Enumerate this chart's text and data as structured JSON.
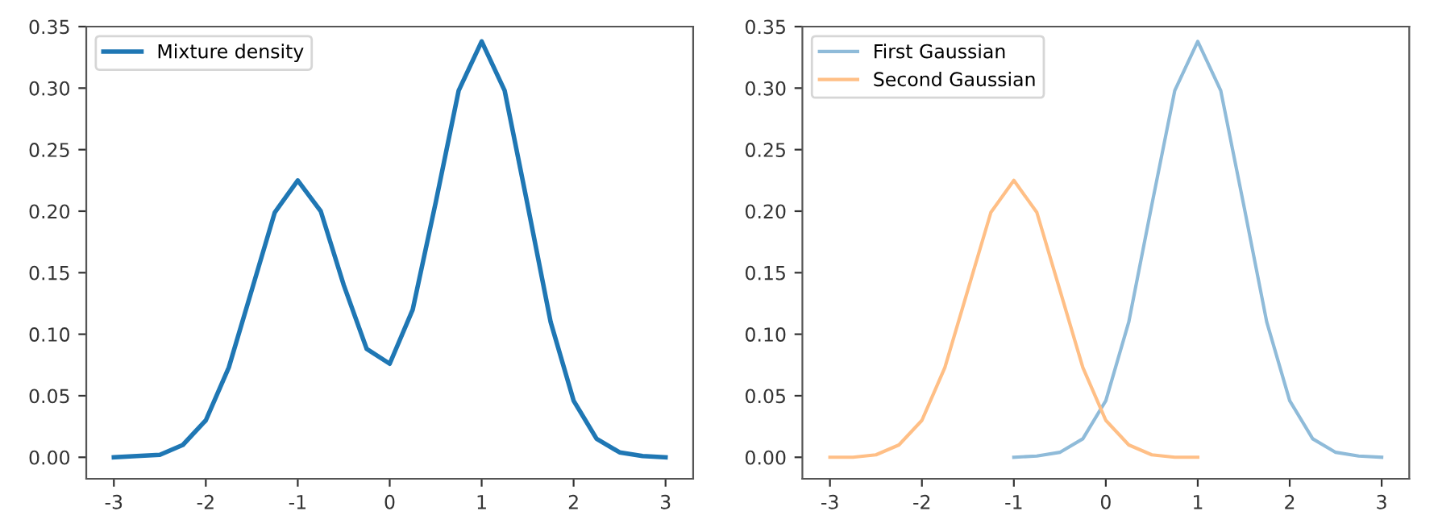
{
  "chart_data": [
    {
      "type": "line",
      "x": [
        -3,
        -2.75,
        -2.5,
        -2.25,
        -2,
        -1.75,
        -1.5,
        -1.25,
        -1,
        -0.75,
        -0.5,
        -0.25,
        0,
        0.25,
        0.5,
        0.75,
        1,
        1.25,
        1.5,
        1.75,
        2,
        2.25,
        2.5,
        2.75,
        3
      ],
      "series": [
        {
          "name": "Mixture density",
          "color": "#1f77b4",
          "values": [
            0.0,
            0.001,
            0.002,
            0.01,
            0.03,
            0.073,
            0.136,
            0.199,
            0.225,
            0.2,
            0.14,
            0.088,
            0.076,
            0.12,
            0.207,
            0.298,
            0.338,
            0.298,
            0.205,
            0.11,
            0.046,
            0.015,
            0.004,
            0.001,
            0.0
          ]
        }
      ],
      "xlim": [
        -3.3,
        3.3
      ],
      "ylim": [
        -0.0175,
        0.35
      ],
      "xticks": [
        -3,
        -2,
        -1,
        0,
        1,
        2,
        3
      ],
      "yticks": [
        {
          "value": 0,
          "label": "0.00"
        },
        {
          "value": 0.05,
          "label": "0.05"
        },
        {
          "value": 0.1,
          "label": "0.10"
        },
        {
          "value": 0.15,
          "label": "0.15"
        },
        {
          "value": 0.2,
          "label": "0.20"
        },
        {
          "value": 0.25,
          "label": "0.25"
        },
        {
          "value": 0.3,
          "label": "0.30"
        },
        {
          "value": 0.35,
          "label": "0.35"
        }
      ],
      "legend": "top left",
      "grid": false
    },
    {
      "type": "line",
      "series": [
        {
          "name": "First Gaussian",
          "color": "#8fbbd9",
          "x": [
            -1,
            -0.75,
            -0.5,
            -0.25,
            0,
            0.25,
            0.5,
            0.75,
            1,
            1.25,
            1.5,
            1.75,
            2,
            2.25,
            2.5,
            2.75,
            3
          ],
          "values": [
            0.0,
            0.001,
            0.004,
            0.015,
            0.046,
            0.11,
            0.205,
            0.298,
            0.338,
            0.298,
            0.205,
            0.11,
            0.046,
            0.015,
            0.004,
            0.001,
            0.0
          ]
        },
        {
          "name": "Second Gaussian",
          "color": "#ffbf86",
          "x": [
            -3,
            -2.75,
            -2.5,
            -2.25,
            -2,
            -1.75,
            -1.5,
            -1.25,
            -1,
            -0.75,
            -0.5,
            -0.25,
            0,
            0.25,
            0.5,
            0.75,
            1
          ],
          "values": [
            0.0,
            0.0,
            0.002,
            0.01,
            0.03,
            0.073,
            0.136,
            0.199,
            0.225,
            0.199,
            0.136,
            0.073,
            0.03,
            0.01,
            0.002,
            0.0,
            0.0
          ]
        }
      ],
      "xlim": [
        -3.3,
        3.3
      ],
      "ylim": [
        -0.0175,
        0.35
      ],
      "xticks": [
        -3,
        -2,
        -1,
        0,
        1,
        2,
        3
      ],
      "yticks": [
        {
          "value": 0,
          "label": "0.00"
        },
        {
          "value": 0.05,
          "label": "0.05"
        },
        {
          "value": 0.1,
          "label": "0.10"
        },
        {
          "value": 0.15,
          "label": "0.15"
        },
        {
          "value": 0.2,
          "label": "0.20"
        },
        {
          "value": 0.25,
          "label": "0.25"
        },
        {
          "value": 0.3,
          "label": "0.30"
        },
        {
          "value": 0.35,
          "label": "0.35"
        }
      ],
      "legend": "top left",
      "grid": false
    }
  ]
}
